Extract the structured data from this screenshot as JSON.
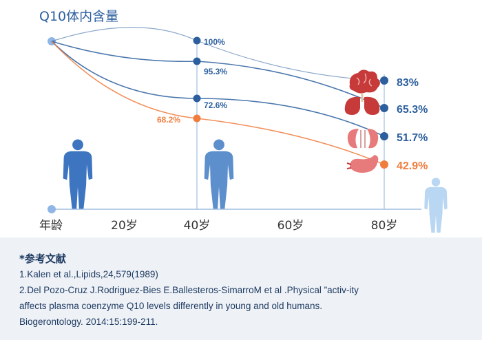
{
  "chart_data": {
    "type": "line",
    "title": "Q10体内含量",
    "xlabel": "年龄",
    "x_ticks": [
      "20岁",
      "40岁",
      "60岁",
      "80岁"
    ],
    "x_tick_values": [
      20,
      40,
      60,
      80
    ],
    "xlim": [
      0,
      90
    ],
    "ylim": [
      0,
      100
    ],
    "series": [
      {
        "name": "",
        "color": "#2c5f9e",
        "icon": "brain-icon",
        "points": [
          [
            0,
            100
          ],
          [
            40,
            100
          ],
          [
            80,
            83
          ]
        ],
        "labels": [
          "",
          "100%",
          "83%"
        ]
      },
      {
        "name": "",
        "color": "#2c5f9e",
        "icon": "lungs-icon",
        "points": [
          [
            0,
            100
          ],
          [
            40,
            95.3
          ],
          [
            80,
            65.3
          ]
        ],
        "labels": [
          "",
          "95.3%",
          "65.3%"
        ]
      },
      {
        "name": "",
        "color": "#2c5f9e",
        "icon": "kidneys-icon",
        "points": [
          [
            0,
            100
          ],
          [
            40,
            72.6
          ],
          [
            80,
            51.7
          ]
        ],
        "labels": [
          "",
          "72.6%",
          "51.7%"
        ]
      },
      {
        "name": "",
        "color": "#f07d3e",
        "icon": "stomach-icon",
        "points": [
          [
            0,
            100
          ],
          [
            40,
            68.2
          ],
          [
            80,
            42.9
          ]
        ],
        "labels": [
          "",
          "68.2%",
          "42.9%"
        ]
      }
    ],
    "grid": false
  },
  "colors": {
    "primary": "#2c5f9e",
    "accent": "#f07d3e",
    "axis": "#9fbde0",
    "figure": "#3d75c0",
    "light_figure": "#b9d7f2"
  },
  "references": {
    "title": "*参考文献",
    "lines": [
      "1.Kalen et al.,Lipids,24,579(1989)",
      "2.Del Pozo-Cruz J.Rodriguez-Bies E.Ballesteros-SimarroM et al .Physical ”activ-ity",
      "affects plasma coenzyme Q10 levels differently in young and old humans.",
      "Biogerontology. 2014:15:199-211."
    ]
  }
}
